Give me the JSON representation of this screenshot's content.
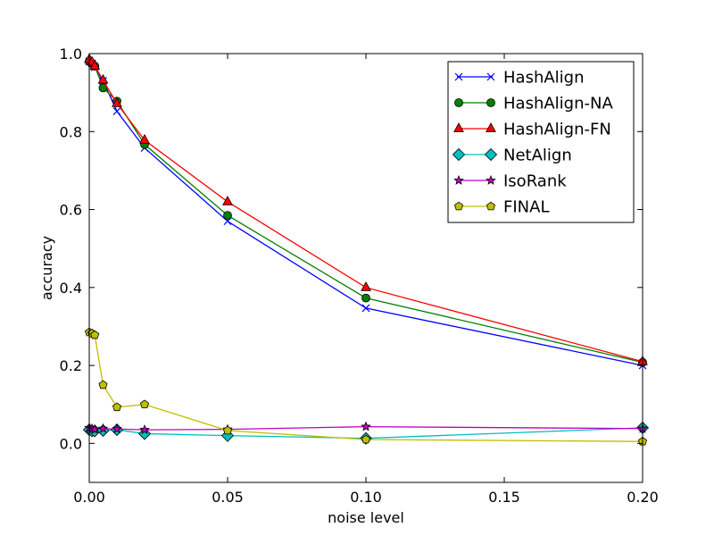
{
  "chart_data": {
    "type": "line",
    "title": "",
    "xlabel": "noise level",
    "ylabel": "accuracy",
    "xlim": [
      0.0,
      0.2
    ],
    "ylim": [
      -0.1,
      1.0
    ],
    "x": [
      0.0,
      0.001,
      0.002,
      0.005,
      0.01,
      0.02,
      0.05,
      0.1,
      0.2
    ],
    "xticks": [
      0.0,
      0.05,
      0.1,
      0.15,
      0.2
    ],
    "xtick_labels": [
      "0.00",
      "0.05",
      "0.10",
      "0.15",
      "0.20"
    ],
    "yticks": [
      0.0,
      0.2,
      0.4,
      0.6,
      0.8,
      1.0
    ],
    "ytick_labels": [
      "0.0",
      "0.2",
      "0.4",
      "0.6",
      "0.8",
      "1.0"
    ],
    "grid": false,
    "legend_position": "top-right",
    "series": [
      {
        "name": "HashAlign",
        "color": "#0000ff",
        "marker": "x",
        "values": [
          0.98,
          0.975,
          0.965,
          0.93,
          0.852,
          0.758,
          0.57,
          0.347,
          0.2
        ]
      },
      {
        "name": "HashAlign-NA",
        "color": "#008000",
        "marker": "circle",
        "values": [
          0.98,
          0.975,
          0.968,
          0.912,
          0.878,
          0.767,
          0.585,
          0.373,
          0.208
        ]
      },
      {
        "name": "HashAlign-FN",
        "color": "#ff0000",
        "marker": "triangle",
        "values": [
          0.985,
          0.978,
          0.968,
          0.932,
          0.872,
          0.778,
          0.62,
          0.4,
          0.21
        ]
      },
      {
        "name": "NetAlign",
        "color": "#00bfbf",
        "marker": "diamond",
        "values": [
          0.035,
          0.032,
          0.032,
          0.033,
          0.035,
          0.025,
          0.02,
          0.013,
          0.04
        ]
      },
      {
        "name": "IsoRank",
        "color": "#bf00bf",
        "marker": "star",
        "values": [
          0.04,
          0.038,
          0.036,
          0.038,
          0.037,
          0.035,
          0.036,
          0.043,
          0.038
        ]
      },
      {
        "name": "FINAL",
        "color": "#bfbf00",
        "marker": "pentagon",
        "values": [
          0.285,
          0.282,
          0.278,
          0.15,
          0.093,
          0.1,
          0.033,
          0.01,
          0.005
        ]
      }
    ]
  }
}
